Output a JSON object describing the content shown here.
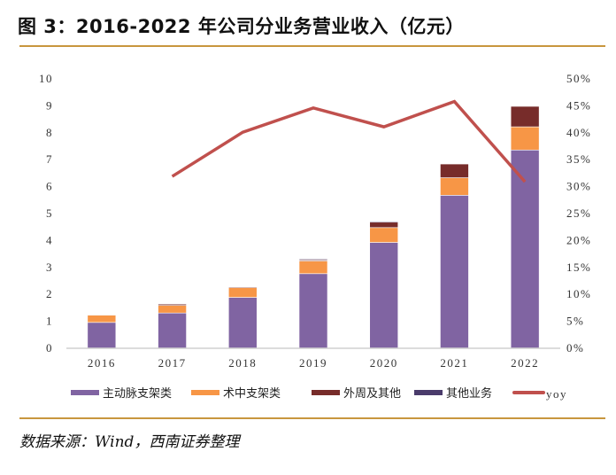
{
  "title": "图 3：2016-2022 年公司分业务营业收入（亿元）",
  "source": "数据来源：Wind，西南证券整理",
  "chart_data": {
    "type": "bar",
    "stacked": true,
    "title": "",
    "categories": [
      "2016",
      "2017",
      "2018",
      "2019",
      "2020",
      "2021",
      "2022"
    ],
    "series": [
      {
        "name": "主动脉支架类",
        "color": "#8064a2",
        "values": [
          0.96,
          1.31,
          1.89,
          2.77,
          3.93,
          5.68,
          7.36
        ]
      },
      {
        "name": "术中支架类",
        "color": "#f79646",
        "values": [
          0.27,
          0.28,
          0.36,
          0.47,
          0.55,
          0.65,
          0.86
        ]
      },
      {
        "name": "外周及其他",
        "color": "#772c2a",
        "values": [
          0.0,
          0.05,
          0.03,
          0.04,
          0.2,
          0.51,
          0.76
        ]
      },
      {
        "name": "其他业务",
        "color": "#4a3b6b",
        "values": [
          0.02,
          0.02,
          0.02,
          0.03,
          0.03,
          0.0,
          0.0
        ]
      }
    ],
    "line_series": {
      "name": "yoy",
      "color": "#c0504d",
      "axis": "right",
      "values": [
        null,
        31.9,
        40.1,
        44.6,
        41.1,
        45.8,
        30.9
      ]
    },
    "ylim": [
      0,
      10
    ],
    "y_ticks": [
      "0",
      "1",
      "2",
      "3",
      "4",
      "5",
      "6",
      "7",
      "8",
      "9",
      "10"
    ],
    "y2lim": [
      0,
      50
    ],
    "y2_ticks": [
      "0%",
      "5%",
      "10%",
      "15%",
      "20%",
      "25%",
      "30%",
      "35%",
      "40%",
      "45%",
      "50%"
    ],
    "grid": false,
    "legend_position": "bottom"
  }
}
